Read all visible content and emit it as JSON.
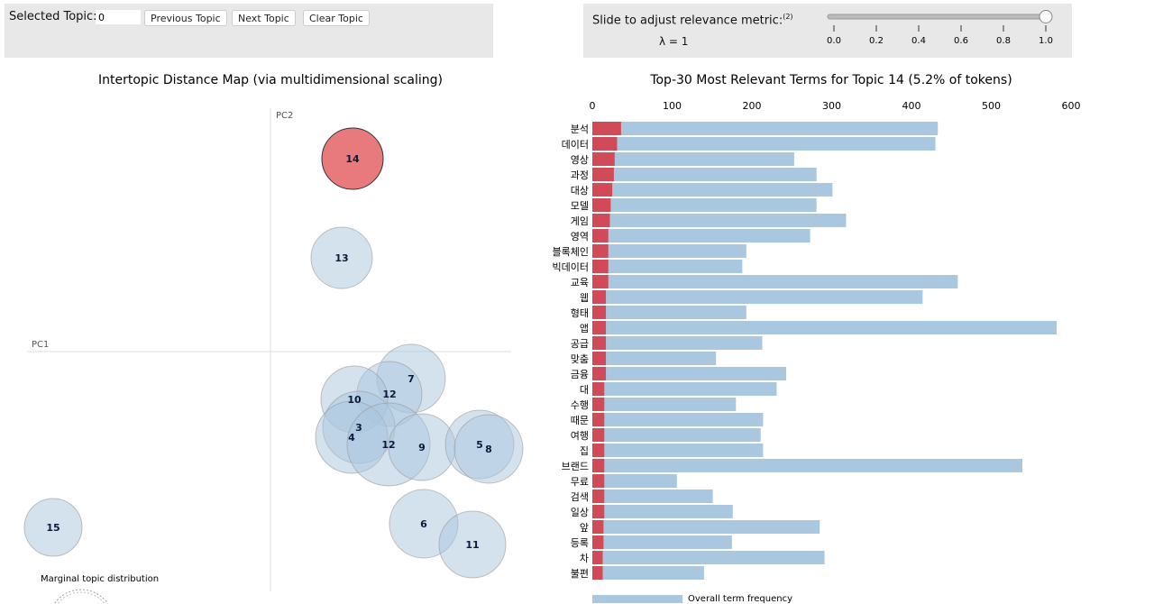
{
  "controls": {
    "selected_topic_label": "Selected Topic:",
    "selected_topic_value": "0",
    "previous_label": "Previous Topic",
    "next_label": "Next Topic",
    "clear_label": "Clear Topic",
    "slider_label": "Slide to adjust relevance metric:",
    "slider_footnote": "(2)",
    "lambda_text": "λ = 1",
    "lambda_value": 1,
    "slider_ticks": [
      "0.0",
      "0.2",
      "0.4",
      "0.6",
      "0.8",
      "1.0"
    ]
  },
  "colors": {
    "selected_topic": "#e8797d",
    "topic": "#a9c6de",
    "term_topic": "#d14a58",
    "term_overall": "#a9c8e0"
  },
  "chart_data": [
    {
      "type": "scatter",
      "title": "Intertopic Distance Map (via multidimensional scaling)",
      "xlabel": "PC1",
      "ylabel": "PC2",
      "selected": "14",
      "topics": [
        "14",
        "13",
        "7",
        "12",
        "10",
        "3",
        "4",
        "12",
        "9",
        "5",
        "8",
        "6",
        "11",
        "15"
      ],
      "legend_title": "Marginal topic distribution"
    },
    {
      "type": "bar",
      "orientation": "horizontal",
      "title": "Top-30 Most Relevant Terms for Topic 14 (5.2% of tokens)",
      "xlim": [
        0,
        600
      ],
      "xticks": [
        "0",
        "100",
        "200",
        "300",
        "400",
        "500",
        "600"
      ],
      "categories": [
        "분석",
        "데이터",
        "영상",
        "과정",
        "대상",
        "모델",
        "게임",
        "영역",
        "블록체인",
        "빅데이터",
        "교육",
        "웹",
        "형태",
        "앱",
        "공급",
        "맞춤",
        "금융",
        "대",
        "수행",
        "때문",
        "여행",
        "집",
        "브랜드",
        "무료",
        "검색",
        "일상",
        "앞",
        "등록",
        "차",
        "불편"
      ],
      "series": [
        {
          "name": "Overall term frequency",
          "values": [
            433,
            430,
            253,
            281,
            301,
            281,
            318,
            273,
            193,
            188,
            458,
            414,
            193,
            582,
            213,
            155,
            243,
            231,
            180,
            214,
            211,
            214,
            539,
            106,
            151,
            176,
            285,
            175,
            291,
            140
          ]
        },
        {
          "values": [
            36,
            31,
            28,
            27,
            25,
            23,
            22,
            20,
            20,
            20,
            20,
            17,
            17,
            17,
            17,
            17,
            17,
            15,
            15,
            15,
            15,
            15,
            15,
            15,
            15,
            15,
            14,
            14,
            13,
            13
          ]
        }
      ],
      "legend": {
        "overall_label": "Overall term frequency"
      }
    }
  ]
}
